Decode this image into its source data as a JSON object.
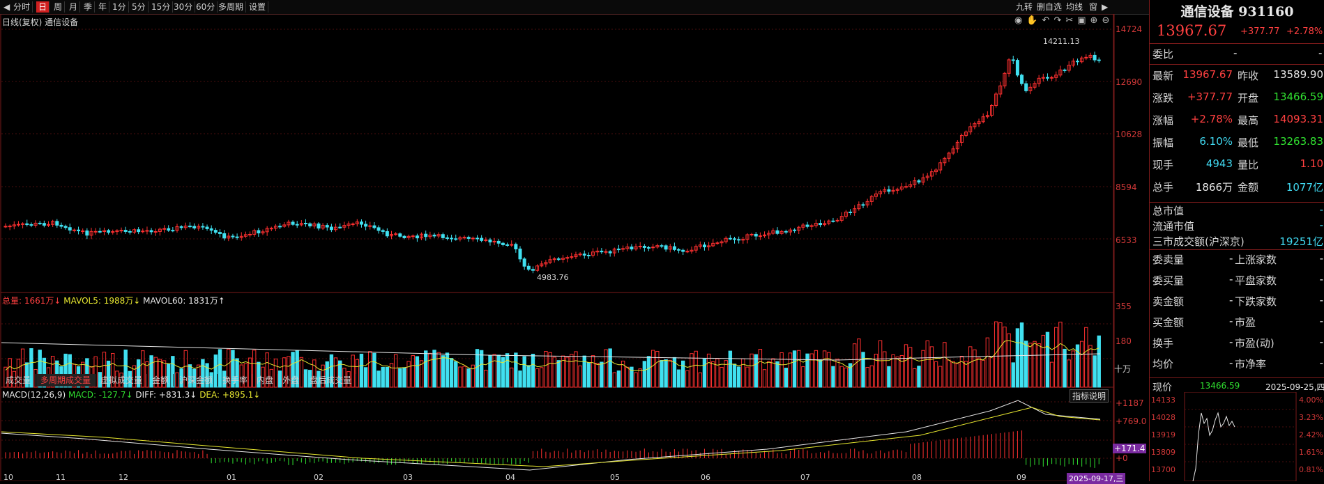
{
  "toolbar": {
    "left_buttons": [
      "分时",
      "日",
      "周",
      "月",
      "季",
      "年",
      "1分",
      "5分",
      "15分",
      "30分",
      "60分",
      "多周期",
      "设置"
    ],
    "active": "日",
    "right_buttons": [
      "九转",
      "删自选",
      "均线",
      "窗"
    ]
  },
  "main": {
    "caption": "日线(复权)  通信设备",
    "y_ticks": [
      "14724",
      "12690",
      "10628",
      "8594",
      "6533"
    ],
    "high_label": "14211.13",
    "low_label": "4983.76"
  },
  "volume": {
    "legend_total": "总量: 1661万↓",
    "legend_ma5": "MAVOL5: 1988万↓",
    "legend_ma60": "MAVOL60: 1831万↑",
    "y_ticks": [
      "355",
      "180"
    ],
    "unit": "十万"
  },
  "tabs": [
    "成交量",
    "多周期成交量",
    "虚拟成交量",
    "金额",
    "沪深金额",
    "换手率",
    "内盘",
    "外盘",
    "盘后成交量"
  ],
  "active_tab": "多周期成交量",
  "macd": {
    "legend_name": "MACD(12,26,9)",
    "legend_macd": "MACD: -127.7↓",
    "legend_diff": "DIFF: +831.3↓",
    "legend_dea": "DEA: +895.1↓",
    "help": "指标说明",
    "y_ticks": [
      "+1187",
      "+769.0",
      "+171.4",
      "+0"
    ]
  },
  "x_axis": {
    "months": [
      "10",
      "11",
      "12",
      "01",
      "02",
      "03",
      "04",
      "05",
      "06",
      "07",
      "08",
      "09"
    ],
    "cursor_date": "2025-09-17,三"
  },
  "quote": {
    "name": "通信设备 931160",
    "price": "13967.67",
    "change": "+377.77",
    "pct": "+2.78%",
    "weibi_label": "委比",
    "weibi_value": "-",
    "weibi_value2": "-",
    "rows": [
      {
        "l1": "最新",
        "v1": "13967.67",
        "c1": "red",
        "l2": "昨收",
        "v2": "13589.90",
        "c2": "white"
      },
      {
        "l1": "涨跌",
        "v1": "+377.77",
        "c1": "red",
        "l2": "开盘",
        "v2": "13466.59",
        "c2": "green"
      },
      {
        "l1": "涨幅",
        "v1": "+2.78%",
        "c1": "red",
        "l2": "最高",
        "v2": "14093.31",
        "c2": "red"
      },
      {
        "l1": "振幅",
        "v1": "6.10%",
        "c1": "cyan",
        "l2": "最低",
        "v2": "13263.83",
        "c2": "green"
      },
      {
        "l1": "现手",
        "v1": "4943",
        "c1": "cyan",
        "l2": "量比",
        "v2": "1.10",
        "c2": "red"
      },
      {
        "l1": "总手",
        "v1": "1866万",
        "c1": "white",
        "l2": "金额",
        "v2": "1077亿",
        "c2": "cyan"
      }
    ],
    "stats": [
      {
        "l": "总市值",
        "v": "-",
        "c": "cyan"
      },
      {
        "l": "流通市值",
        "v": "-",
        "c": "cyan"
      },
      {
        "l": "三市成交额(沪深京)",
        "v": "19251亿",
        "c": "cyan"
      }
    ],
    "pairs": [
      {
        "l1": "委卖量",
        "v1": "-",
        "l2": "上涨家数",
        "v2": "-"
      },
      {
        "l1": "委买量",
        "v1": "-",
        "l2": "平盘家数",
        "v2": "-"
      },
      {
        "l1": "卖金额",
        "v1": "-",
        "l2": "下跌家数",
        "v2": "-"
      },
      {
        "l1": "买金额",
        "v1": "-",
        "l2": "市盈",
        "v2": "-"
      },
      {
        "l1": "换手",
        "v1": "-",
        "l2": "市盈(动)",
        "v2": "-"
      },
      {
        "l1": "均价",
        "v1": "-",
        "l2": "市净率",
        "v2": "-"
      }
    ],
    "mini": {
      "label": "现价",
      "value": "13466.59",
      "date": "2025-09-25,四",
      "left_ticks": [
        "14133",
        "14028",
        "13919",
        "13809",
        "13700"
      ],
      "right_ticks": [
        "4.00%",
        "3.23%",
        "2.42%",
        "1.61%",
        "0.81%"
      ]
    }
  },
  "colors": {
    "up": "#ff3030",
    "down": "#40e0f0",
    "ma5": "#e8e830",
    "ma60": "#e8e8e8",
    "grid": "#5a1010"
  },
  "icons": [
    "eye-icon",
    "hand-icon",
    "undo-icon",
    "redo-icon",
    "scissors-icon",
    "lock-icon",
    "zoom-in-icon",
    "zoom-out-icon"
  ]
}
